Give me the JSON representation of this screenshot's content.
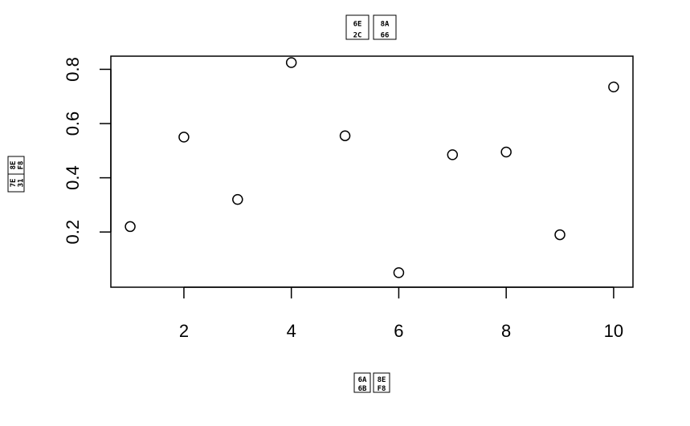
{
  "chart_data": {
    "type": "scatter",
    "title": "",
    "xlabel": "",
    "ylabel": "",
    "glyph_boxes": {
      "title": [
        [
          "6E",
          "2C"
        ],
        [
          "8A",
          "66"
        ]
      ],
      "xlabel": [
        [
          "6A",
          "6B"
        ],
        [
          "8E",
          "F8"
        ]
      ],
      "ylabel": [
        [
          "7E",
          "31"
        ],
        [
          "8E",
          "F8"
        ]
      ]
    },
    "x": [
      1,
      2,
      3,
      4,
      5,
      6,
      7,
      8,
      9,
      10
    ],
    "y": [
      0.22,
      0.55,
      0.32,
      0.825,
      0.555,
      0.05,
      0.485,
      0.495,
      0.19,
      0.735
    ],
    "xlim": [
      0.64,
      10.36
    ],
    "ylim": [
      -0.0036,
      0.8486
    ],
    "x_ticks": [
      2,
      4,
      6,
      8,
      10
    ],
    "y_ticks": [
      0.2,
      0.4,
      0.6,
      0.8
    ],
    "x_tick_labels": [
      "2",
      "4",
      "6",
      "8",
      "10"
    ],
    "y_tick_labels": [
      "0.2",
      "0.4",
      "0.6",
      "0.8"
    ],
    "marker": "open-circle",
    "grid": false,
    "legend": "none"
  }
}
